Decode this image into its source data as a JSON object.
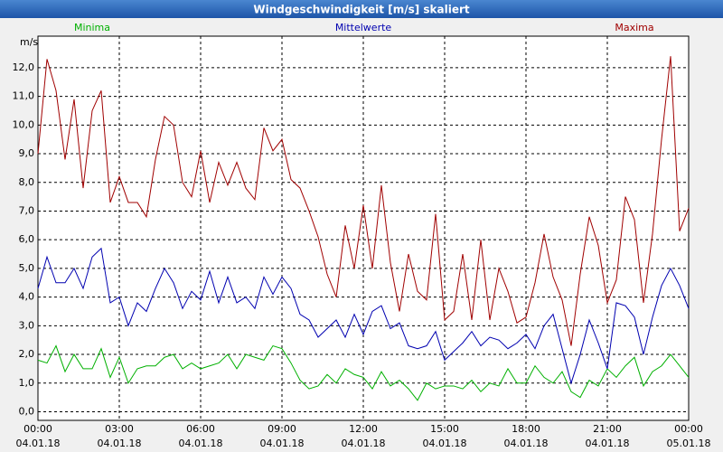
{
  "chart_data": {
    "type": "line",
    "title": "Windgeschwindigkeit [m/s] skaliert",
    "y_label": "m/s",
    "legend": "top",
    "grid": true,
    "x": [
      0,
      20,
      40,
      60,
      80,
      100,
      120,
      140,
      160,
      180,
      200,
      220,
      240,
      260,
      280,
      300,
      320,
      340,
      360,
      380,
      400,
      420,
      440,
      460,
      480,
      500,
      520,
      540,
      560,
      580,
      600,
      620,
      640,
      660,
      680,
      700,
      720,
      740,
      760,
      780,
      800,
      820,
      840,
      860,
      880,
      900,
      920,
      940,
      960,
      980,
      1000,
      1020,
      1040,
      1060,
      1080,
      1100,
      1120,
      1140,
      1160,
      1180,
      1200,
      1220,
      1240,
      1260,
      1280,
      1300,
      1320,
      1340,
      1360,
      1380,
      1400,
      1420,
      1440
    ],
    "xlim": [
      0,
      1440
    ],
    "xticks": [
      {
        "value": 0,
        "label": "00:00",
        "date": "04.01.18"
      },
      {
        "value": 180,
        "label": "03:00",
        "date": "04.01.18"
      },
      {
        "value": 360,
        "label": "06:00",
        "date": "04.01.18"
      },
      {
        "value": 540,
        "label": "09:00",
        "date": "04.01.18"
      },
      {
        "value": 720,
        "label": "12:00",
        "date": "04.01.18"
      },
      {
        "value": 900,
        "label": "15:00",
        "date": "04.01.18"
      },
      {
        "value": 1080,
        "label": "18:00",
        "date": "04.01.18"
      },
      {
        "value": 1260,
        "label": "21:00",
        "date": "04.01.18"
      },
      {
        "value": 1440,
        "label": "00:00",
        "date": "05.01.18"
      }
    ],
    "ylim": [
      -0.3,
      13.1
    ],
    "yticks": [
      {
        "value": 0,
        "label": "0,0"
      },
      {
        "value": 1,
        "label": "1,0"
      },
      {
        "value": 2,
        "label": "2,0"
      },
      {
        "value": 3,
        "label": "3,0"
      },
      {
        "value": 4,
        "label": "4,0"
      },
      {
        "value": 5,
        "label": "5,0"
      },
      {
        "value": 6,
        "label": "6,0"
      },
      {
        "value": 7,
        "label": "7,0"
      },
      {
        "value": 8,
        "label": "8,0"
      },
      {
        "value": 9,
        "label": "9,0"
      },
      {
        "value": 10,
        "label": "10,0"
      },
      {
        "value": 11,
        "label": "11,0"
      },
      {
        "value": 12,
        "label": "12,0"
      }
    ],
    "series": [
      {
        "name": "Minima",
        "color": "#00b000",
        "values": [
          1.8,
          1.7,
          2.3,
          1.4,
          2.0,
          1.5,
          1.5,
          2.2,
          1.2,
          1.9,
          1.0,
          1.5,
          1.6,
          1.6,
          1.9,
          2.0,
          1.5,
          1.7,
          1.5,
          1.6,
          1.7,
          2.0,
          1.5,
          2.0,
          1.9,
          1.8,
          2.3,
          2.2,
          1.7,
          1.1,
          0.8,
          0.9,
          1.3,
          1.0,
          1.5,
          1.3,
          1.2,
          0.8,
          1.4,
          0.9,
          1.1,
          0.8,
          0.4,
          1.0,
          0.8,
          0.9,
          0.9,
          0.8,
          1.1,
          0.7,
          1.0,
          0.9,
          1.5,
          1.0,
          1.0,
          1.6,
          1.2,
          1.0,
          1.4,
          0.7,
          0.5,
          1.1,
          0.9,
          1.5,
          1.2,
          1.6,
          1.9,
          0.9,
          1.4,
          1.6,
          2.0,
          1.6,
          1.2
        ]
      },
      {
        "name": "Mittelwerte",
        "color": "#0000b0",
        "values": [
          4.3,
          5.4,
          4.5,
          4.5,
          5.0,
          4.3,
          5.4,
          5.7,
          3.8,
          4.0,
          3.0,
          3.8,
          3.5,
          4.3,
          5.0,
          4.5,
          3.6,
          4.2,
          3.9,
          4.9,
          3.8,
          4.7,
          3.8,
          4.0,
          3.6,
          4.7,
          4.1,
          4.7,
          4.3,
          3.4,
          3.2,
          2.6,
          2.9,
          3.2,
          2.6,
          3.4,
          2.7,
          3.5,
          3.7,
          2.9,
          3.1,
          2.3,
          2.2,
          2.3,
          2.8,
          1.8,
          2.1,
          2.4,
          2.8,
          2.3,
          2.6,
          2.5,
          2.2,
          2.4,
          2.7,
          2.2,
          3.0,
          3.4,
          2.2,
          1.0,
          2.0,
          3.2,
          2.4,
          1.5,
          3.8,
          3.7,
          3.3,
          2.0,
          3.3,
          4.4,
          5.0,
          4.4,
          3.6
        ]
      },
      {
        "name": "Maxima",
        "color": "#a00000",
        "values": [
          9.0,
          12.3,
          11.2,
          8.8,
          10.9,
          7.8,
          10.5,
          11.2,
          7.3,
          8.2,
          7.3,
          7.3,
          6.8,
          8.8,
          10.3,
          10.0,
          8.0,
          7.5,
          9.1,
          7.3,
          8.7,
          7.9,
          8.7,
          7.8,
          7.4,
          9.9,
          9.1,
          9.5,
          8.1,
          7.8,
          7.0,
          6.1,
          4.8,
          4.0,
          6.5,
          5.0,
          7.2,
          5.0,
          7.9,
          5.2,
          3.5,
          5.5,
          4.2,
          3.9,
          6.9,
          3.2,
          3.5,
          5.5,
          3.2,
          6.0,
          3.2,
          5.0,
          4.2,
          3.1,
          3.3,
          4.5,
          6.2,
          4.7,
          3.9,
          2.3,
          4.8,
          6.8,
          5.8,
          3.8,
          4.6,
          7.5,
          6.7,
          3.8,
          6.2,
          9.5,
          12.4,
          6.3,
          7.1
        ]
      }
    ]
  }
}
